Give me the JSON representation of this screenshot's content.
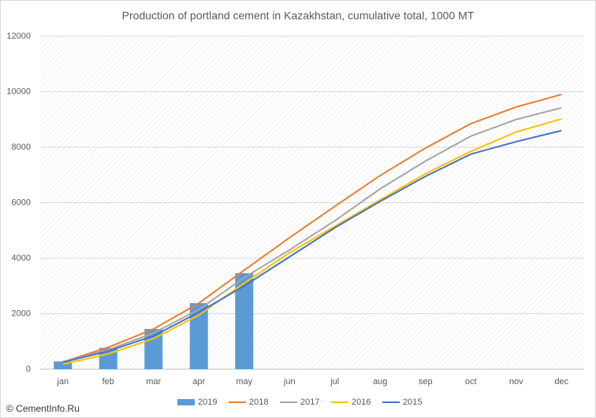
{
  "chart_data": {
    "type": "bar-line",
    "title": "Production of portland cement in Kazakhstan, cumulative total, 1000 MT",
    "source": "© CementInfo.Ru",
    "categories": [
      "jan",
      "feb",
      "mar",
      "apr",
      "may",
      "jun",
      "jul",
      "aug",
      "sep",
      "oct",
      "nov",
      "dec"
    ],
    "series": [
      {
        "name": "2019",
        "type": "bar",
        "color": "#5b9bd5",
        "values": [
          280,
          770,
          1450,
          2380,
          3460,
          null,
          null,
          null,
          null,
          null,
          null,
          null
        ]
      },
      {
        "name": "2018",
        "type": "line",
        "color": "#ed7d31",
        "values": [
          260,
          790,
          1450,
          2380,
          3570,
          4740,
          5870,
          6980,
          7970,
          8850,
          9450,
          9900
        ]
      },
      {
        "name": "2017",
        "type": "line",
        "color": "#a5a5a5",
        "values": [
          270,
          700,
          1300,
          2150,
          3300,
          4300,
          5350,
          6500,
          7500,
          8400,
          9000,
          9420
        ]
      },
      {
        "name": "2016",
        "type": "line",
        "color": "#ffc000",
        "values": [
          180,
          550,
          1100,
          1950,
          3100,
          4200,
          5150,
          6100,
          7050,
          7850,
          8550,
          9020
        ]
      },
      {
        "name": "2015",
        "type": "line",
        "color": "#4472c4",
        "values": [
          250,
          650,
          1200,
          2050,
          3000,
          4050,
          5100,
          6050,
          6950,
          7750,
          8200,
          8600
        ]
      }
    ],
    "ylim": [
      0,
      12000
    ],
    "yticks": [
      0,
      2000,
      4000,
      6000,
      8000,
      10000,
      12000
    ],
    "grid": true,
    "legend": "bottom"
  }
}
